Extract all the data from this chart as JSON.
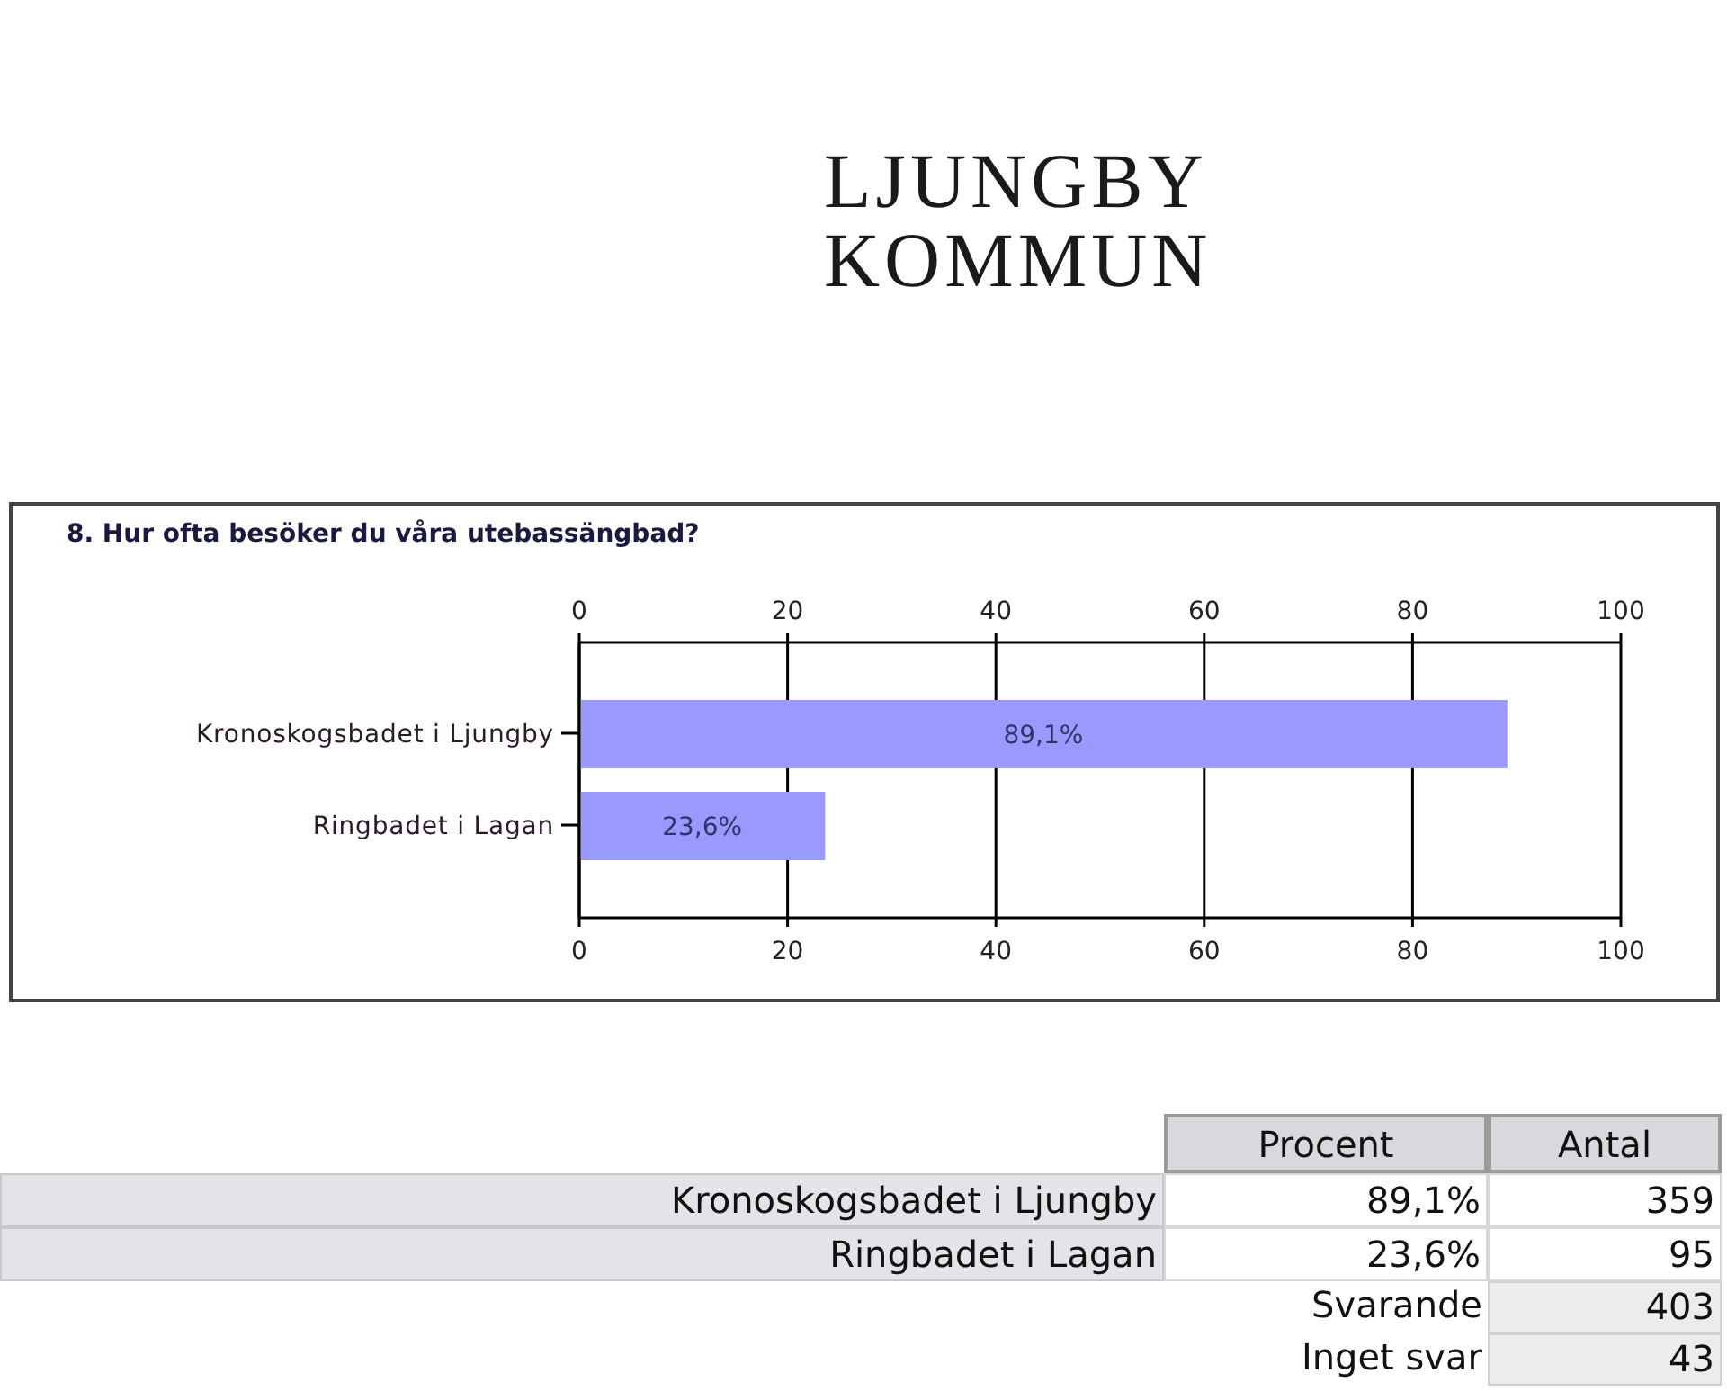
{
  "chart_data": {
    "type": "bar",
    "title": "8. Hur ofta besöker du våra utebassängbad?",
    "orientation": "horizontal",
    "categories": [
      "Kronoskogsbadet i Ljungby",
      "Ringbadet i Lagan"
    ],
    "values": [
      89.1,
      23.6
    ],
    "color": "#9999ff",
    "value_labels": [
      "89,1%",
      "23,6%"
    ],
    "xlim": [
      0,
      100
    ],
    "xticks": [
      0,
      20,
      40,
      60,
      80,
      100
    ],
    "x2lim": [
      0,
      100
    ],
    "x2ticks": [
      0,
      20,
      40,
      60,
      80,
      100
    ],
    "grid": "x",
    "annotations": [
      "LJUNGBY KOMMUN",
      "Procent",
      "Antal",
      "359",
      "95",
      "Svarande",
      "403",
      "Inget svar",
      "43"
    ]
  }
}
